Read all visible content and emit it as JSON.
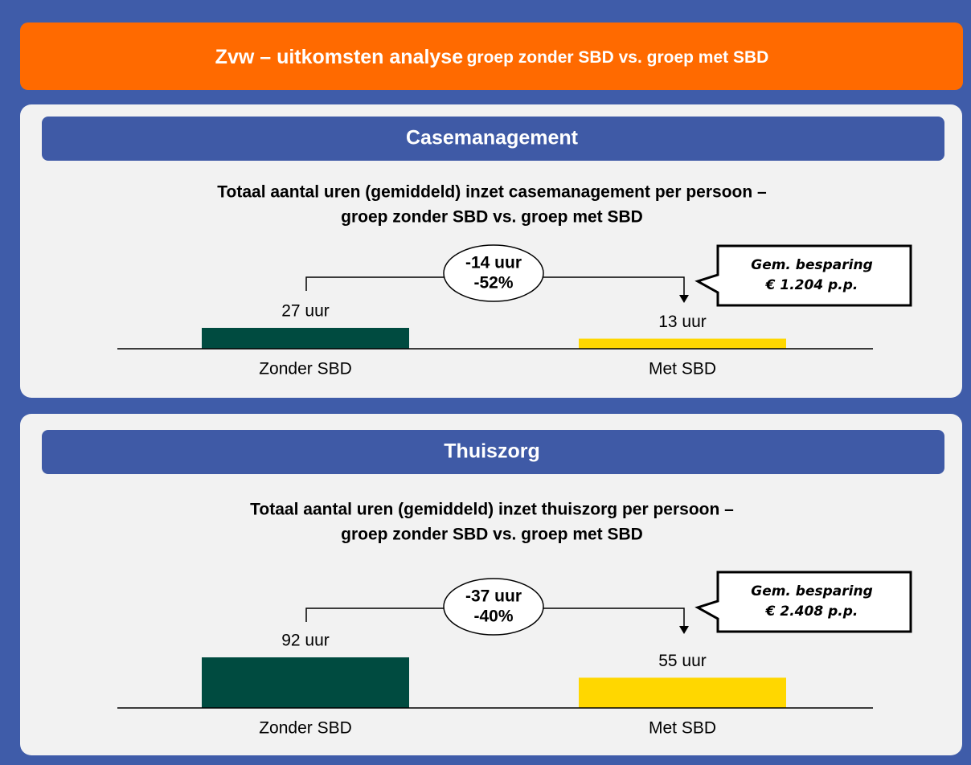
{
  "header": {
    "title": "Zvw – uitkomsten analyse",
    "title_suffix": "groep zonder SBD vs. groep met SBD"
  },
  "chart_data": [
    {
      "type": "bar",
      "section": "Casemanagement",
      "title": [
        "Totaal aantal uren (gemiddeld) inzet casemanagement per persoon –",
        "groep zonder SBD vs. groep met SBD"
      ],
      "categories": [
        "Zonder SBD",
        "Met SBD"
      ],
      "values": [
        27,
        13
      ],
      "value_labels": [
        "27 uur",
        "13 uur"
      ],
      "colors": [
        "#004b40",
        "#ffd700"
      ],
      "ylim": [
        0,
        135
      ],
      "change": [
        "-14 uur",
        "-52%"
      ],
      "callout": [
        "Gem. besparing",
        "€ 1.204 p.p."
      ]
    },
    {
      "type": "bar",
      "section": "Thuiszorg",
      "title": [
        "Totaal aantal uren (gemiddeld) inzet thuiszorg per persoon –",
        "groep zonder SBD vs. groep met SBD"
      ],
      "categories": [
        "Zonder SBD",
        "Met SBD"
      ],
      "values": [
        92,
        55
      ],
      "value_labels": [
        "92 uur",
        "55 uur"
      ],
      "colors": [
        "#004b40",
        "#ffd700"
      ],
      "ylim": [
        0,
        190
      ],
      "change": [
        "-37 uur",
        "-40%"
      ],
      "callout": [
        "Gem. besparing",
        "€ 2.408 p.p."
      ]
    }
  ]
}
